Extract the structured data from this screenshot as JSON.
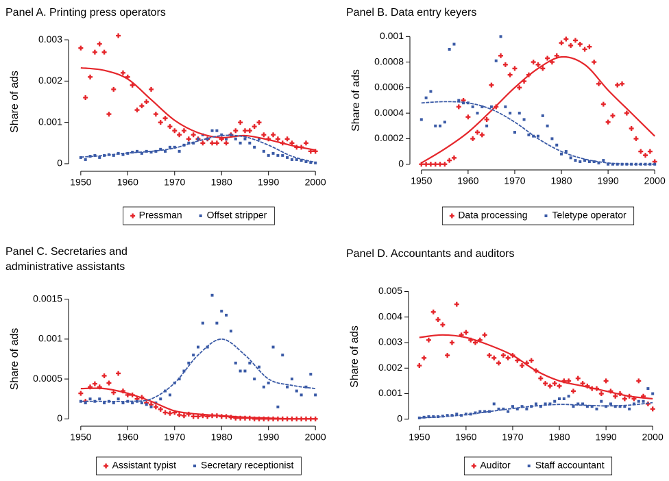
{
  "chart_data": [
    {
      "type": "scatter",
      "title": "Panel A. Printing press operators",
      "ylabel": "Share of ads",
      "x": [
        1950,
        1951,
        1952,
        1953,
        1954,
        1955,
        1956,
        1957,
        1958,
        1959,
        1960,
        1961,
        1962,
        1963,
        1964,
        1965,
        1966,
        1967,
        1968,
        1969,
        1970,
        1971,
        1972,
        1973,
        1974,
        1975,
        1976,
        1977,
        1978,
        1979,
        1980,
        1981,
        1982,
        1983,
        1984,
        1985,
        1986,
        1987,
        1988,
        1989,
        1990,
        1991,
        1992,
        1993,
        1994,
        1995,
        1996,
        1997,
        1998,
        1999,
        2000
      ],
      "fit_x": [
        1950,
        1955,
        1960,
        1965,
        1970,
        1975,
        1980,
        1985,
        1990,
        1995,
        2000
      ],
      "xlim": [
        1949,
        2001
      ],
      "xticks": [
        1950,
        1960,
        1970,
        1980,
        1990,
        2000
      ],
      "ylim": [
        -0.0002,
        0.0032
      ],
      "yticks": [
        0,
        0.001,
        0.002,
        0.003
      ],
      "series": [
        {
          "name": "Pressman",
          "color": "#e5262b",
          "marker": "plus",
          "values": [
            0.0028,
            0.0016,
            0.0021,
            0.0027,
            0.0029,
            0.0027,
            0.0012,
            0.0018,
            0.0031,
            0.0022,
            0.0021,
            0.0019,
            0.0013,
            0.0014,
            0.0015,
            0.0018,
            0.0012,
            0.001,
            0.0011,
            0.0009,
            0.0008,
            0.0007,
            0.0008,
            0.0006,
            0.0007,
            0.0006,
            0.0005,
            0.0006,
            0.0005,
            0.0005,
            0.0006,
            0.0005,
            0.0007,
            0.0008,
            0.001,
            0.0008,
            0.0008,
            0.0009,
            0.001,
            0.0007,
            0.0006,
            0.0007,
            0.0006,
            0.0005,
            0.0006,
            0.0005,
            0.0004,
            0.0004,
            0.0005,
            0.0003,
            0.0003
          ],
          "fit": [
            0.00232,
            0.00226,
            0.00205,
            0.00155,
            0.00105,
            0.00075,
            0.00063,
            0.00068,
            0.00058,
            0.00044,
            0.00033
          ]
        },
        {
          "name": "Offset stripper",
          "color": "#3a5aa6",
          "marker": "square",
          "values": [
            0.00015,
            0.0001,
            0.00018,
            0.0002,
            0.00015,
            0.0002,
            0.00022,
            0.0002,
            0.00025,
            0.00022,
            0.00025,
            0.00028,
            0.0003,
            0.00025,
            0.0003,
            0.00028,
            0.0003,
            0.00035,
            0.0003,
            0.0004,
            0.0004,
            0.0003,
            0.00045,
            0.0005,
            0.0005,
            0.0006,
            0.0007,
            0.0006,
            0.0008,
            0.0008,
            0.0007,
            0.0006,
            0.0007,
            0.0006,
            0.0005,
            0.0006,
            0.0005,
            0.0004,
            0.0006,
            0.0003,
            0.0002,
            0.00025,
            0.0002,
            0.0002,
            0.00015,
            0.0001,
            0.0001,
            8e-05,
            5e-05,
            3e-05,
            2e-05
          ],
          "fit": [
            0.00016,
            0.0002,
            0.00026,
            0.0003,
            0.00038,
            0.00055,
            0.00068,
            0.00065,
            0.00045,
            0.00018,
            3e-05
          ]
        }
      ]
    },
    {
      "type": "scatter",
      "title": "Panel B. Data entry keyers",
      "ylabel": "Share of ads",
      "x": [
        1950,
        1951,
        1952,
        1953,
        1954,
        1955,
        1956,
        1957,
        1958,
        1959,
        1960,
        1961,
        1962,
        1963,
        1964,
        1965,
        1966,
        1967,
        1968,
        1969,
        1970,
        1971,
        1972,
        1973,
        1974,
        1975,
        1976,
        1977,
        1978,
        1979,
        1980,
        1981,
        1982,
        1983,
        1984,
        1985,
        1986,
        1987,
        1988,
        1989,
        1990,
        1991,
        1992,
        1993,
        1994,
        1995,
        1996,
        1997,
        1998,
        1999,
        2000
      ],
      "fit_x": [
        1950,
        1955,
        1960,
        1965,
        1970,
        1975,
        1980,
        1985,
        1990,
        1995,
        2000
      ],
      "xlim": [
        1949,
        2001
      ],
      "xticks": [
        1950,
        1960,
        1970,
        1980,
        1990,
        2000
      ],
      "ylim": [
        -5e-05,
        0.00105
      ],
      "yticks": [
        0,
        0.0002,
        0.0004,
        0.0006,
        0.0008,
        0.001
      ],
      "series": [
        {
          "name": "Data processing",
          "color": "#e5262b",
          "marker": "plus",
          "values": [
            0,
            0,
            0,
            0,
            0,
            0,
            3e-05,
            5e-05,
            0.00045,
            0.0005,
            0.00037,
            0.0002,
            0.00025,
            0.00023,
            0.00035,
            0.00062,
            0.00045,
            0.00085,
            0.00078,
            0.0007,
            0.00075,
            0.0006,
            0.00065,
            0.0007,
            0.0008,
            0.00078,
            0.00075,
            0.00083,
            0.0008,
            0.00085,
            0.00095,
            0.00098,
            0.00093,
            0.00097,
            0.00094,
            0.0009,
            0.00092,
            0.0008,
            0.00063,
            0.00047,
            0.00033,
            0.00038,
            0.00062,
            0.00063,
            0.0004,
            0.00028,
            0.0002,
            0.0001,
            7e-05,
            0.0001,
            2e-05
          ],
          "fit": [
            1e-05,
            0.00012,
            0.00025,
            0.00042,
            0.0006,
            0.00075,
            0.00084,
            0.00078,
            0.00058,
            0.0004,
            0.00022
          ]
        },
        {
          "name": "Teletype operator",
          "color": "#3a5aa6",
          "marker": "square",
          "values": [
            0.00035,
            0.00052,
            0.00057,
            0.0003,
            0.0003,
            0.00033,
            0.0009,
            0.00094,
            0.0005,
            0.00048,
            0.00048,
            0.00045,
            0.0004,
            0.00045,
            0.0003,
            0.00045,
            0.00081,
            0.001,
            0.00045,
            0.0004,
            0.00025,
            0.0004,
            0.00035,
            0.00023,
            0.00022,
            0.00022,
            0.00038,
            0.0003,
            0.0002,
            0.00015,
            8e-05,
            0.0001,
            5e-05,
            3e-05,
            2e-05,
            3e-05,
            2e-05,
            2e-05,
            1e-05,
            3e-05,
            0,
            0,
            0,
            0,
            0,
            0,
            0,
            0,
            0,
            0,
            0
          ],
          "fit": [
            0.00048,
            0.00049,
            0.00048,
            0.00043,
            0.00033,
            0.0002,
            0.0001,
            4e-05,
            1e-05,
            0,
            0
          ]
        }
      ]
    },
    {
      "type": "scatter",
      "title": "Panel C. Secretaries and administrative assistants",
      "ylabel": "Share of ads",
      "x": [
        1950,
        1951,
        1952,
        1953,
        1954,
        1955,
        1956,
        1957,
        1958,
        1959,
        1960,
        1961,
        1962,
        1963,
        1964,
        1965,
        1966,
        1967,
        1968,
        1969,
        1970,
        1971,
        1972,
        1973,
        1974,
        1975,
        1976,
        1977,
        1978,
        1979,
        1980,
        1981,
        1982,
        1983,
        1984,
        1985,
        1986,
        1987,
        1988,
        1989,
        1990,
        1991,
        1992,
        1993,
        1994,
        1995,
        1996,
        1997,
        1998,
        1999,
        2000
      ],
      "fit_x": [
        1950,
        1955,
        1960,
        1965,
        1970,
        1975,
        1980,
        1985,
        1990,
        1995,
        2000
      ],
      "xlim": [
        1949,
        2001
      ],
      "xticks": [
        1950,
        1960,
        1970,
        1980,
        1990,
        2000
      ],
      "ylim": [
        -0.0001,
        0.0016
      ],
      "yticks": [
        0,
        0.0005,
        0.001,
        0.0015
      ],
      "series": [
        {
          "name": "Assistant typist",
          "color": "#e5262b",
          "marker": "plus",
          "values": [
            0.00032,
            0.00022,
            0.0004,
            0.00044,
            0.0004,
            0.00054,
            0.00045,
            0.00033,
            0.00057,
            0.00035,
            0.0003,
            0.0003,
            0.00025,
            0.00027,
            0.0002,
            0.00018,
            0.00015,
            0.00012,
            8e-05,
            7e-05,
            8e-05,
            5e-05,
            4e-05,
            6e-05,
            3e-05,
            3e-05,
            4e-05,
            3e-05,
            4e-05,
            4e-05,
            3e-05,
            3e-05,
            2e-05,
            1e-05,
            1e-05,
            1e-05,
            1e-05,
            0,
            0,
            0,
            0,
            0,
            0,
            0,
            0,
            0,
            0,
            0,
            0,
            0,
            0
          ],
          "fit": [
            0.00038,
            0.00038,
            0.00032,
            0.00022,
            0.0001,
            6e-05,
            4e-05,
            2e-05,
            1e-05,
            0,
            0
          ]
        },
        {
          "name": "Secretary receptionist",
          "color": "#3a5aa6",
          "marker": "square",
          "values": [
            0.00022,
            0.0002,
            0.00025,
            0.00022,
            0.00025,
            0.0002,
            0.00022,
            0.0002,
            0.00025,
            0.0002,
            0.00022,
            0.0002,
            0.00022,
            0.0002,
            0.00018,
            0.00015,
            0.0002,
            0.00025,
            0.00035,
            0.0003,
            0.00045,
            0.0005,
            0.0006,
            0.0007,
            0.0008,
            0.0009,
            0.0012,
            0.0009,
            0.00155,
            0.0012,
            0.00135,
            0.0013,
            0.0011,
            0.0007,
            0.0006,
            0.0006,
            0.0007,
            0.0005,
            0.00065,
            0.0004,
            0.00045,
            0.0009,
            0.00015,
            0.0008,
            0.0004,
            0.0005,
            0.00035,
            0.0003,
            0.0004,
            0.00056,
            0.0003
          ],
          "fit": [
            0.00022,
            0.00022,
            0.00022,
            0.00025,
            0.00045,
            0.0008,
            0.001,
            0.0008,
            0.0005,
            0.00042,
            0.00038
          ]
        }
      ]
    },
    {
      "type": "scatter",
      "title": "Panel D. Accountants and auditors",
      "ylabel": "Share of ads",
      "x": [
        1950,
        1951,
        1952,
        1953,
        1954,
        1955,
        1956,
        1957,
        1958,
        1959,
        1960,
        1961,
        1962,
        1963,
        1964,
        1965,
        1966,
        1967,
        1968,
        1969,
        1970,
        1971,
        1972,
        1973,
        1974,
        1975,
        1976,
        1977,
        1978,
        1979,
        1980,
        1981,
        1982,
        1983,
        1984,
        1985,
        1986,
        1987,
        1988,
        1989,
        1990,
        1991,
        1992,
        1993,
        1994,
        1995,
        1996,
        1997,
        1998,
        1999,
        2000
      ],
      "fit_x": [
        1950,
        1955,
        1960,
        1965,
        1970,
        1975,
        1980,
        1985,
        1990,
        1995,
        2000
      ],
      "xlim": [
        1949,
        2001
      ],
      "xticks": [
        1950,
        1960,
        1970,
        1980,
        1990,
        2000
      ],
      "ylim": [
        -0.0003,
        0.0052
      ],
      "yticks": [
        0,
        0.001,
        0.002,
        0.003,
        0.004,
        0.005
      ],
      "series": [
        {
          "name": "Auditor",
          "color": "#e5262b",
          "marker": "plus",
          "values": [
            0.0021,
            0.0024,
            0.0031,
            0.0042,
            0.0039,
            0.0037,
            0.0025,
            0.003,
            0.0045,
            0.0033,
            0.0034,
            0.0031,
            0.003,
            0.0031,
            0.0033,
            0.0025,
            0.0024,
            0.0022,
            0.0025,
            0.0024,
            0.0025,
            0.0023,
            0.0021,
            0.0022,
            0.0023,
            0.0019,
            0.0016,
            0.0014,
            0.0013,
            0.0014,
            0.0013,
            0.0015,
            0.0015,
            0.0011,
            0.0016,
            0.0014,
            0.0013,
            0.0012,
            0.0012,
            0.001,
            0.0015,
            0.0011,
            0.0009,
            0.001,
            0.0008,
            0.0009,
            0.0008,
            0.0015,
            0.0009,
            0.0006,
            0.0004
          ],
          "fit": [
            0.0032,
            0.0033,
            0.0032,
            0.0029,
            0.0025,
            0.0019,
            0.0015,
            0.0013,
            0.0011,
            0.0009,
            0.0008
          ]
        },
        {
          "name": "Staff accountant",
          "color": "#3a5aa6",
          "marker": "square",
          "values": [
            5e-05,
            8e-05,
            0.0001,
            0.0001,
            0.0001,
            0.00012,
            0.00015,
            0.00015,
            0.0002,
            0.00015,
            0.0002,
            0.0002,
            0.00025,
            0.0003,
            0.0003,
            0.0003,
            0.0006,
            0.0004,
            0.0004,
            0.0003,
            0.0005,
            0.0004,
            0.0005,
            0.0004,
            0.0005,
            0.0006,
            0.0005,
            0.0006,
            0.0006,
            0.0007,
            0.0008,
            0.0008,
            0.0009,
            0.0005,
            0.0006,
            0.0006,
            0.0005,
            0.0005,
            0.0004,
            0.0007,
            0.0005,
            0.0006,
            0.0005,
            0.0005,
            0.0005,
            0.0004,
            0.0006,
            0.0007,
            0.0007,
            0.0012,
            0.001
          ],
          "fit": [
            5e-05,
            0.0001,
            0.00018,
            0.0003,
            0.00042,
            0.00052,
            0.00058,
            0.00055,
            0.00052,
            0.00055,
            0.00065
          ]
        }
      ]
    }
  ]
}
